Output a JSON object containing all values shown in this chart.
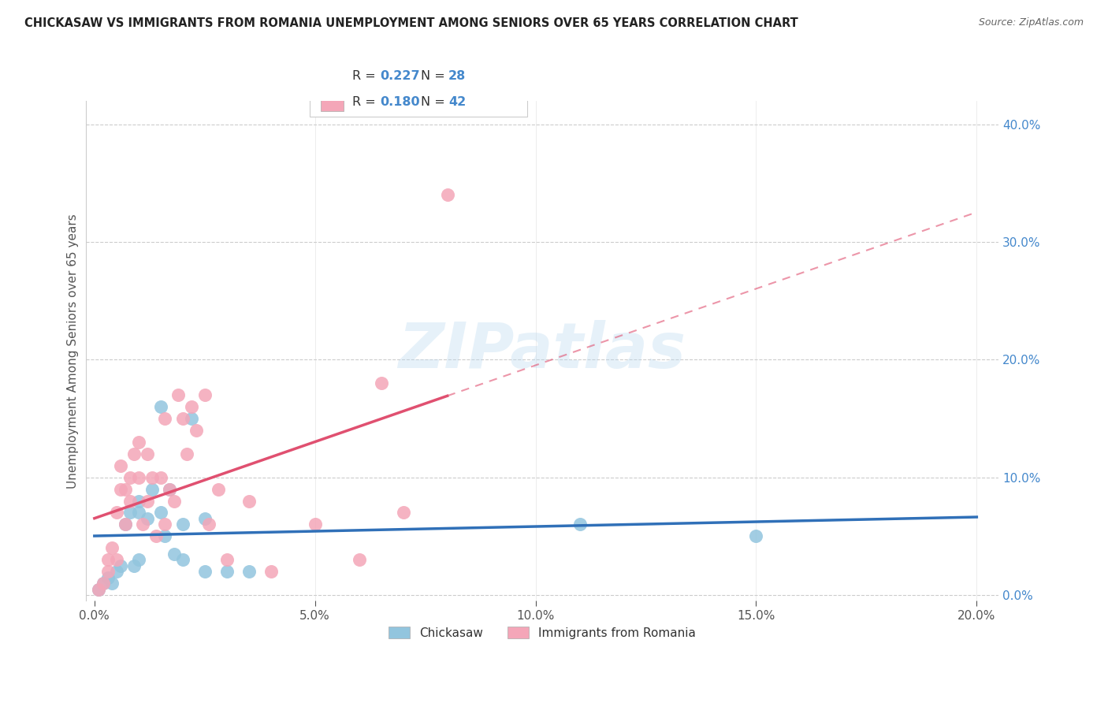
{
  "title": "CHICKASAW VS IMMIGRANTS FROM ROMANIA UNEMPLOYMENT AMONG SENIORS OVER 65 YEARS CORRELATION CHART",
  "source": "Source: ZipAtlas.com",
  "ylabel": "Unemployment Among Seniors over 65 years",
  "xlabel_ticks": [
    "0.0%",
    "5.0%",
    "10.0%",
    "15.0%",
    "20.0%"
  ],
  "xlabel_vals": [
    0.0,
    0.05,
    0.1,
    0.15,
    0.2
  ],
  "ylabel_ticks_right": [
    "0.0%",
    "10.0%",
    "20.0%",
    "30.0%",
    "40.0%"
  ],
  "ylabel_vals_right": [
    0.0,
    0.1,
    0.2,
    0.3,
    0.4
  ],
  "xlim": [
    -0.002,
    0.205
  ],
  "ylim": [
    -0.005,
    0.42
  ],
  "watermark": "ZIPatlas",
  "color_blue": "#92c5de",
  "color_pink": "#f4a6b8",
  "color_blue_line": "#3070b8",
  "color_pink_line": "#e05070",
  "color_title": "#222222",
  "color_source": "#666666",
  "color_blue_label": "#4488cc",
  "legend_r1_label": "R = ",
  "legend_r1_val": "0.227",
  "legend_n1_label": "  N = ",
  "legend_n1_val": "28",
  "legend_r2_label": "R = ",
  "legend_r2_val": "0.180",
  "legend_n2_label": "  N = ",
  "legend_n2_val": "42",
  "series1_x": [
    0.001,
    0.002,
    0.003,
    0.004,
    0.005,
    0.006,
    0.007,
    0.008,
    0.009,
    0.01,
    0.01,
    0.01,
    0.012,
    0.013,
    0.015,
    0.015,
    0.016,
    0.017,
    0.018,
    0.02,
    0.02,
    0.022,
    0.025,
    0.025,
    0.03,
    0.035,
    0.11,
    0.15
  ],
  "series1_y": [
    0.005,
    0.01,
    0.015,
    0.01,
    0.02,
    0.025,
    0.06,
    0.07,
    0.025,
    0.03,
    0.07,
    0.08,
    0.065,
    0.09,
    0.07,
    0.16,
    0.05,
    0.09,
    0.035,
    0.03,
    0.06,
    0.15,
    0.02,
    0.065,
    0.02,
    0.02,
    0.06,
    0.05
  ],
  "series2_x": [
    0.001,
    0.002,
    0.003,
    0.003,
    0.004,
    0.005,
    0.005,
    0.006,
    0.006,
    0.007,
    0.007,
    0.008,
    0.008,
    0.009,
    0.01,
    0.01,
    0.011,
    0.012,
    0.012,
    0.013,
    0.014,
    0.015,
    0.016,
    0.016,
    0.017,
    0.018,
    0.019,
    0.02,
    0.021,
    0.022,
    0.023,
    0.025,
    0.026,
    0.028,
    0.03,
    0.035,
    0.04,
    0.05,
    0.06,
    0.065,
    0.07,
    0.08
  ],
  "series2_y": [
    0.005,
    0.01,
    0.02,
    0.03,
    0.04,
    0.03,
    0.07,
    0.09,
    0.11,
    0.06,
    0.09,
    0.08,
    0.1,
    0.12,
    0.1,
    0.13,
    0.06,
    0.08,
    0.12,
    0.1,
    0.05,
    0.1,
    0.06,
    0.15,
    0.09,
    0.08,
    0.17,
    0.15,
    0.12,
    0.16,
    0.14,
    0.17,
    0.06,
    0.09,
    0.03,
    0.08,
    0.02,
    0.06,
    0.03,
    0.18,
    0.07,
    0.34
  ]
}
